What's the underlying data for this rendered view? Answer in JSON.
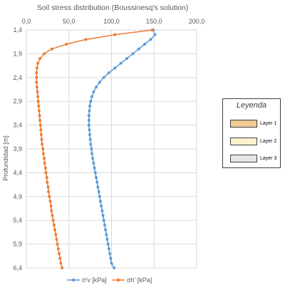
{
  "chart_data": {
    "type": "line",
    "title": "Soil stress distribution (Boussinesq's solution)",
    "ylabel": "Profundidad [m]",
    "xlabel": "",
    "xlim": [
      0,
      200
    ],
    "ylim": [
      1.4,
      6.4
    ],
    "y_reversed": true,
    "x_axis_position": "top",
    "x_ticks": [
      "0,0",
      "50,0",
      "100,0",
      "150,0",
      "200,0"
    ],
    "x_tick_values": [
      0,
      50,
      100,
      150,
      200
    ],
    "y_ticks": [
      "1,4",
      "1,9",
      "2,4",
      "2,9",
      "3,4",
      "3,9",
      "4,4",
      "4,9",
      "5,4",
      "5,9",
      "6,4"
    ],
    "y_tick_values": [
      1.4,
      1.9,
      2.4,
      2.9,
      3.4,
      3.9,
      4.4,
      4.9,
      5.4,
      5.9,
      6.4
    ],
    "grid": true,
    "legend_position": "bottom",
    "series": [
      {
        "name": "σ'v [kPa]",
        "color": "#5b9bd5",
        "points": [
          [
            149,
            1.4
          ],
          [
            151,
            1.5
          ],
          [
            146,
            1.6
          ],
          [
            139,
            1.7
          ],
          [
            132,
            1.8
          ],
          [
            125,
            1.9
          ],
          [
            118,
            2.0
          ],
          [
            111,
            2.1
          ],
          [
            104,
            2.2
          ],
          [
            97,
            2.3
          ],
          [
            91,
            2.4
          ],
          [
            86,
            2.5
          ],
          [
            82,
            2.6
          ],
          [
            79,
            2.7
          ],
          [
            77,
            2.8
          ],
          [
            75.5,
            2.9
          ],
          [
            74.5,
            3.0
          ],
          [
            74,
            3.1
          ],
          [
            73.5,
            3.2
          ],
          [
            73.5,
            3.3
          ],
          [
            73.5,
            3.4
          ],
          [
            74,
            3.5
          ],
          [
            74.5,
            3.6
          ],
          [
            75,
            3.7
          ],
          [
            75.5,
            3.8
          ],
          [
            76.5,
            3.9
          ],
          [
            77,
            4.0
          ],
          [
            78,
            4.1
          ],
          [
            79,
            4.2
          ],
          [
            80,
            4.3
          ],
          [
            81,
            4.4
          ],
          [
            82,
            4.5
          ],
          [
            83,
            4.6
          ],
          [
            84,
            4.7
          ],
          [
            85,
            4.8
          ],
          [
            86,
            4.9
          ],
          [
            87,
            5.0
          ],
          [
            88,
            5.1
          ],
          [
            89,
            5.2
          ],
          [
            90,
            5.3
          ],
          [
            91,
            5.4
          ],
          [
            92,
            5.5
          ],
          [
            93,
            5.6
          ],
          [
            94,
            5.7
          ],
          [
            95,
            5.8
          ],
          [
            96,
            5.9
          ],
          [
            97,
            6.0
          ],
          [
            98,
            6.1
          ],
          [
            99,
            6.2
          ],
          [
            100,
            6.3
          ],
          [
            103,
            6.4
          ]
        ]
      },
      {
        "name": "σh' [kPa]",
        "color": "#ed7d31",
        "points": [
          [
            148,
            1.4
          ],
          [
            104,
            1.5
          ],
          [
            70,
            1.6
          ],
          [
            47,
            1.7
          ],
          [
            30,
            1.8
          ],
          [
            21,
            1.9
          ],
          [
            16,
            2.0
          ],
          [
            13.5,
            2.1
          ],
          [
            12.5,
            2.2
          ],
          [
            12,
            2.3
          ],
          [
            12,
            2.4
          ],
          [
            12,
            2.5
          ],
          [
            12.5,
            2.6
          ],
          [
            13,
            2.7
          ],
          [
            13.5,
            2.8
          ],
          [
            14,
            2.9
          ],
          [
            14.5,
            3.0
          ],
          [
            15,
            3.1
          ],
          [
            15.5,
            3.2
          ],
          [
            16,
            3.3
          ],
          [
            16.5,
            3.4
          ],
          [
            17,
            3.5
          ],
          [
            17.5,
            3.6
          ],
          [
            18,
            3.7
          ],
          [
            18.5,
            3.8
          ],
          [
            19.5,
            3.9
          ],
          [
            20,
            4.0
          ],
          [
            21,
            4.1
          ],
          [
            21.5,
            4.2
          ],
          [
            22.5,
            4.3
          ],
          [
            23,
            4.4
          ],
          [
            24,
            4.5
          ],
          [
            24.5,
            4.6
          ],
          [
            25.5,
            4.7
          ],
          [
            26,
            4.8
          ],
          [
            27,
            4.9
          ],
          [
            28,
            5.0
          ],
          [
            29,
            5.1
          ],
          [
            29.5,
            5.2
          ],
          [
            30.5,
            5.3
          ],
          [
            31.5,
            5.4
          ],
          [
            32.5,
            5.5
          ],
          [
            33.5,
            5.6
          ],
          [
            34.5,
            5.7
          ],
          [
            35.5,
            5.8
          ],
          [
            36.5,
            5.9
          ],
          [
            37.5,
            6.0
          ],
          [
            38.5,
            6.1
          ],
          [
            39.5,
            6.2
          ],
          [
            40.5,
            6.3
          ],
          [
            42,
            6.4
          ]
        ]
      }
    ]
  },
  "legend_panel": {
    "title": "Leyenda",
    "items": [
      {
        "label": "Layer 1",
        "color": "#f0c993"
      },
      {
        "label": "Layer 2",
        "color": "#fff2cc"
      },
      {
        "label": "Layer 3",
        "color": "#e7e6e6"
      }
    ]
  }
}
